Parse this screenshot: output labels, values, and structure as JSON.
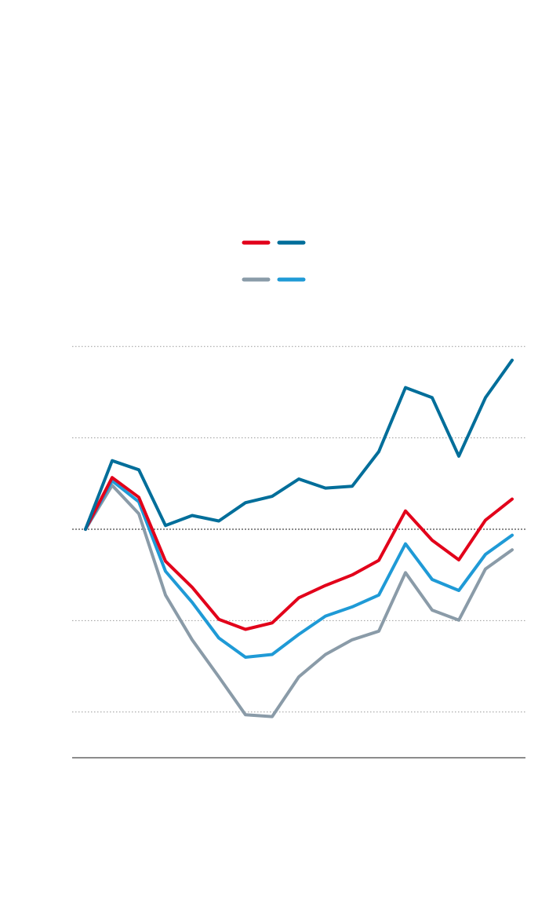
{
  "chart_data": {
    "type": "line",
    "x": [
      1,
      2,
      3,
      4,
      5,
      6,
      7,
      8,
      9,
      10,
      11,
      12,
      13,
      14,
      15,
      16,
      17
    ],
    "ylim": [
      -5,
      5
    ],
    "gridlines": [
      -4,
      -2,
      0,
      2,
      4
    ],
    "baseline": 0,
    "grid": true,
    "legend_position": "top-center",
    "series": [
      {
        "color": "#006E9A",
        "values": [
          0,
          1.5,
          1.3,
          0.08,
          0.3,
          0.18,
          0.58,
          0.72,
          1.1,
          0.9,
          0.94,
          1.7,
          3.1,
          2.88,
          1.6,
          2.88,
          3.7
        ]
      },
      {
        "color": "#E2001A",
        "values": [
          0,
          1.13,
          0.7,
          -0.7,
          -1.27,
          -1.97,
          -2.19,
          -2.05,
          -1.5,
          -1.23,
          -1.0,
          -0.68,
          0.4,
          -0.24,
          -0.67,
          0.2,
          0.66
        ]
      },
      {
        "color": "#1F9AD6",
        "values": [
          0,
          1.06,
          0.6,
          -0.92,
          -1.6,
          -2.38,
          -2.8,
          -2.74,
          -2.3,
          -1.9,
          -1.7,
          -1.44,
          -0.32,
          -1.1,
          -1.34,
          -0.55,
          -0.13
        ]
      },
      {
        "color": "#8A9BA8",
        "values": [
          0,
          0.96,
          0.34,
          -1.44,
          -2.42,
          -3.23,
          -4.06,
          -4.1,
          -3.23,
          -2.74,
          -2.42,
          -2.23,
          -0.95,
          -1.77,
          -1.99,
          -0.87,
          -0.45
        ]
      }
    ]
  }
}
